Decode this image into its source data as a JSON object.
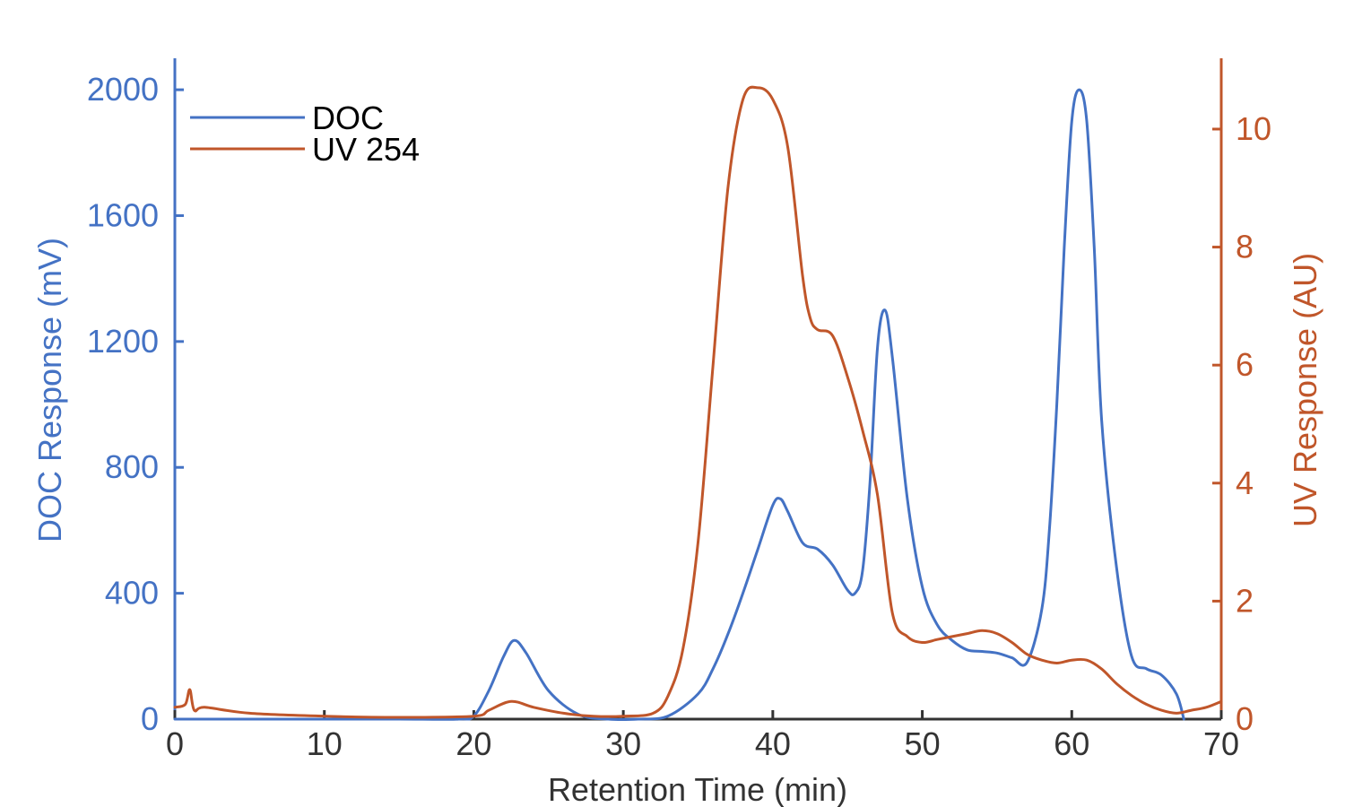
{
  "colors": {
    "doc": "#4472C4",
    "uv": "#C0562A",
    "bottom_axis": "#333333"
  },
  "chart_data": {
    "type": "line",
    "title": "",
    "xlabel": "Retention Time (min)",
    "ylabel_left": "DOC Response (mV)",
    "ylabel_right": "UV Response (AU)",
    "xlim": [
      0,
      70
    ],
    "ylim_left": [
      0,
      2100
    ],
    "ylim_right": [
      0,
      11.2
    ],
    "xticks": [
      0,
      10,
      20,
      30,
      40,
      50,
      60,
      70
    ],
    "yticks_left": [
      0,
      400,
      800,
      1200,
      1600,
      2000
    ],
    "yticks_right": [
      0,
      2,
      4,
      6,
      8,
      10
    ],
    "legend_position": "top-left",
    "grid": false,
    "series": [
      {
        "name": "DOC",
        "axis": "left",
        "x": [
          0,
          5,
          10,
          15,
          19,
          20,
          21,
          22,
          22.7,
          23.5,
          25,
          27,
          29,
          31,
          33,
          35,
          36,
          37,
          38,
          39,
          40,
          40.5,
          41,
          42,
          43,
          44,
          45,
          45.5,
          46,
          46.5,
          47,
          47.5,
          48,
          49,
          50,
          51,
          52,
          53,
          54,
          55,
          56,
          57,
          58,
          58.5,
          59,
          59.5,
          60,
          60.5,
          61,
          61.5,
          62,
          63,
          64,
          65,
          66,
          67,
          67.5
        ],
        "y": [
          0,
          0,
          0,
          0,
          0,
          10,
          90,
          200,
          250,
          210,
          90,
          15,
          0,
          0,
          10,
          80,
          160,
          270,
          400,
          540,
          680,
          700,
          660,
          560,
          540,
          490,
          410,
          400,
          470,
          750,
          1180,
          1300,
          1150,
          700,
          420,
          300,
          250,
          220,
          215,
          210,
          195,
          180,
          350,
          600,
          1000,
          1500,
          1900,
          2000,
          1900,
          1500,
          950,
          480,
          200,
          160,
          140,
          80,
          0
        ]
      },
      {
        "name": "UV 254",
        "axis": "right",
        "x": [
          0,
          0.7,
          1,
          1.3,
          2,
          5,
          10,
          15,
          20,
          21,
          22.5,
          24,
          26,
          28,
          30,
          32,
          33,
          34,
          35,
          36,
          37,
          38,
          39,
          40,
          41,
          42,
          42.5,
          43,
          44,
          45,
          46,
          47,
          48,
          49,
          50,
          51,
          52,
          53,
          54,
          55,
          56,
          57,
          58,
          59,
          60,
          61,
          62,
          63,
          64,
          65,
          66,
          67,
          68,
          69,
          70
        ],
        "y": [
          0.2,
          0.25,
          0.5,
          0.15,
          0.2,
          0.1,
          0.05,
          0.03,
          0.05,
          0.15,
          0.3,
          0.2,
          0.1,
          0.05,
          0.05,
          0.1,
          0.4,
          1.2,
          3.0,
          6.0,
          9.0,
          10.5,
          10.7,
          10.5,
          9.7,
          7.5,
          6.8,
          6.6,
          6.5,
          5.8,
          4.9,
          3.8,
          1.8,
          1.4,
          1.3,
          1.35,
          1.4,
          1.45,
          1.5,
          1.45,
          1.3,
          1.1,
          1.0,
          0.95,
          1.0,
          1.0,
          0.85,
          0.6,
          0.4,
          0.25,
          0.15,
          0.1,
          0.15,
          0.2,
          0.3
        ]
      }
    ]
  }
}
